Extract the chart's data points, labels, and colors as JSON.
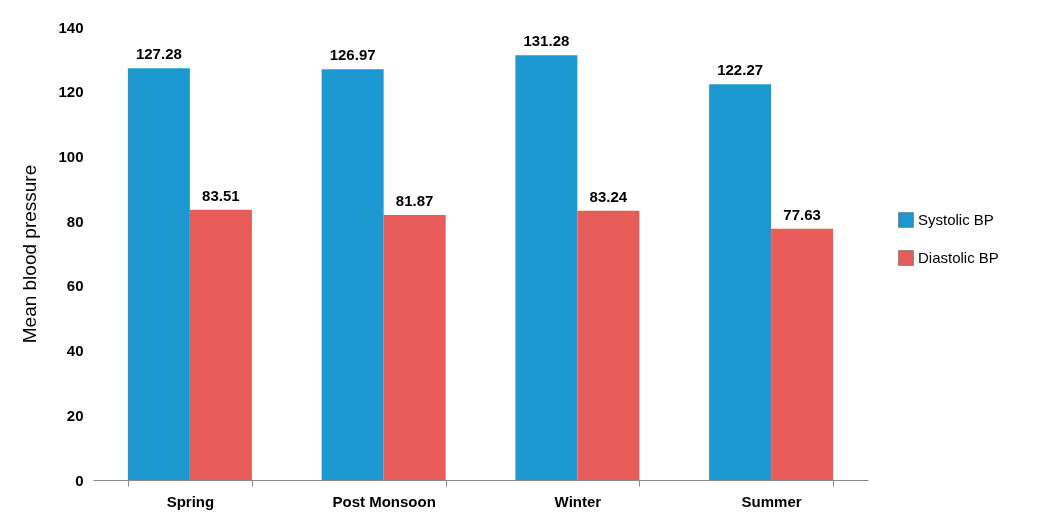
{
  "chart_data": {
    "type": "bar",
    "ylabel": "Mean blood pressure",
    "categories": [
      "Spring",
      "Post Monsoon",
      "Winter",
      "Summer"
    ],
    "series": [
      {
        "name": "Systolic BP",
        "color": "#1e98d0",
        "values": [
          127.28,
          126.97,
          131.28,
          122.27
        ]
      },
      {
        "name": "Diastolic BP",
        "color": "#e85c5a",
        "values": [
          83.51,
          81.87,
          83.24,
          77.63
        ]
      }
    ],
    "ylim": [
      0,
      140
    ],
    "yticks": [
      0,
      20,
      40,
      60,
      80,
      100,
      120,
      140
    ],
    "data_labels": true,
    "legend": "right",
    "grid": false
  }
}
